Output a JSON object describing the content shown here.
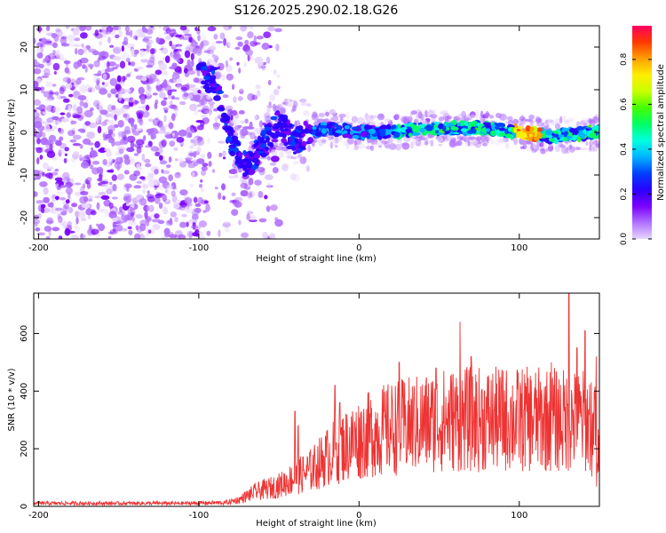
{
  "title": "S126.2025.290.02.18.G26",
  "chart_data": [
    {
      "type": "heatmap",
      "xlabel": "Height of straight line (km)",
      "ylabel": "Frequency (Hz)",
      "xlim": [
        -203,
        150
      ],
      "ylim": [
        -25,
        25
      ],
      "xticks": [
        -200,
        -100,
        0,
        100
      ],
      "xtick_labels": [
        "-200",
        "-100",
        "0",
        "100"
      ],
      "yticks": [
        -20,
        -10,
        0,
        10,
        20
      ],
      "ytick_labels": [
        "-20",
        "-10",
        "0",
        "10",
        "20"
      ],
      "colorbar": {
        "label": "Normalized spectral amplitude",
        "range": [
          0,
          0.95
        ],
        "ticks": [
          0,
          0.2,
          0.4,
          0.6,
          0.8
        ],
        "tick_labels": [
          "0.0",
          "0.2",
          "0.4",
          "0.6",
          "0.8"
        ],
        "colors": [
          "#e8d6ff",
          "#b070ff",
          "#7a00ff",
          "#2a00ff",
          "#0040ff",
          "#00b4ff",
          "#00ffe0",
          "#00ff66",
          "#44ff00",
          "#c8ff00",
          "#ffee00",
          "#ffa000",
          "#ff3a00",
          "#ff0060"
        ]
      },
      "ridge": {
        "description": "dominant frequency band",
        "points": [
          [
            -100,
            14
          ],
          [
            -90,
            12
          ],
          [
            -80,
            -2
          ],
          [
            -70,
            -8
          ],
          [
            -60,
            -3
          ],
          [
            -50,
            2
          ],
          [
            -40,
            -2
          ],
          [
            -30,
            0
          ],
          [
            -20,
            1
          ],
          [
            0,
            0
          ],
          [
            20,
            0
          ],
          [
            40,
            1
          ],
          [
            60,
            1
          ],
          [
            80,
            1
          ],
          [
            100,
            0
          ],
          [
            120,
            -1
          ],
          [
            150,
            0
          ]
        ],
        "peak_amplitude_km": 105
      },
      "noise_region": [
        -203,
        -75
      ]
    },
    {
      "type": "line",
      "xlabel": "Height of straight line (km)",
      "ylabel": "SNR (10 * v/v)",
      "xlim": [
        -203,
        150
      ],
      "ylim": [
        0,
        740
      ],
      "xticks": [
        -200,
        -100,
        0,
        100
      ],
      "xtick_labels": [
        "-200",
        "-100",
        "0",
        "100"
      ],
      "yticks": [
        0,
        200,
        400,
        600
      ],
      "ytick_labels": [
        "0",
        "200",
        "400",
        "600"
      ],
      "color": "#ee3333",
      "envelope": [
        [
          -203,
          10
        ],
        [
          -110,
          10
        ],
        [
          -85,
          12
        ],
        [
          -75,
          25
        ],
        [
          -65,
          55
        ],
        [
          -50,
          80
        ],
        [
          -40,
          110
        ],
        [
          -30,
          140
        ],
        [
          -20,
          190
        ],
        [
          -10,
          230
        ],
        [
          0,
          260
        ],
        [
          10,
          285
        ],
        [
          20,
          300
        ],
        [
          30,
          310
        ],
        [
          40,
          320
        ],
        [
          50,
          330
        ],
        [
          60,
          335
        ],
        [
          70,
          335
        ],
        [
          80,
          335
        ],
        [
          90,
          335
        ],
        [
          100,
          335
        ],
        [
          110,
          335
        ],
        [
          120,
          335
        ],
        [
          130,
          330
        ],
        [
          140,
          330
        ],
        [
          150,
          320
        ]
      ],
      "spikes": [
        [
          -40,
          330
        ],
        [
          -38,
          280
        ],
        [
          -15,
          420
        ],
        [
          -12,
          360
        ],
        [
          25,
          500
        ],
        [
          48,
          480
        ],
        [
          63,
          640
        ],
        [
          70,
          520
        ],
        [
          90,
          470
        ],
        [
          120,
          500
        ],
        [
          131,
          740
        ],
        [
          136,
          550
        ],
        [
          141,
          610
        ],
        [
          145,
          430
        ],
        [
          148,
          520
        ]
      ]
    }
  ]
}
